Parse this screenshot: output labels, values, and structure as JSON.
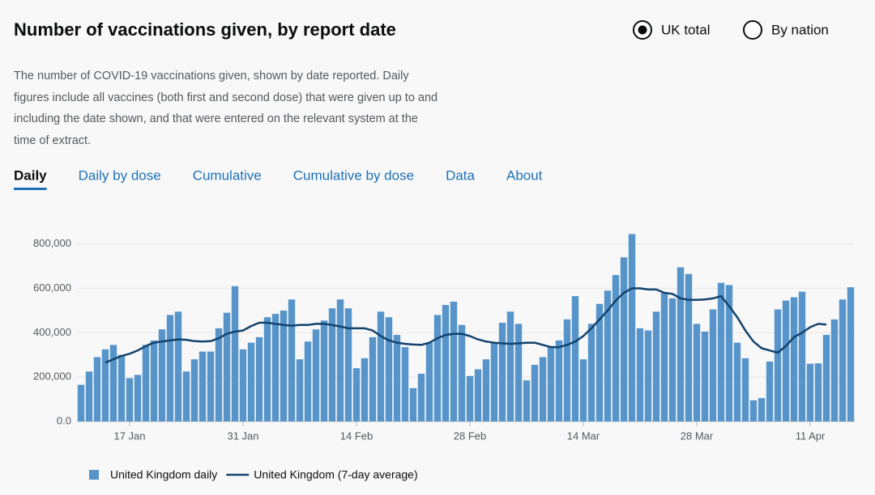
{
  "header": {
    "title": "Number of vaccinations given, by report date",
    "options": [
      {
        "label": "UK total",
        "selected": true
      },
      {
        "label": "By nation",
        "selected": false
      }
    ]
  },
  "description": "The number of COVID-19 vaccinations given, shown by date reported. Daily figures include all vaccines (both first and second dose) that were given up to and including the date shown, and that were entered on the relevant system at the time of extract.",
  "tabs": [
    {
      "label": "Daily",
      "active": true
    },
    {
      "label": "Daily by dose",
      "active": false
    },
    {
      "label": "Cumulative",
      "active": false
    },
    {
      "label": "Cumulative by dose",
      "active": false
    },
    {
      "label": "Data",
      "active": false
    },
    {
      "label": "About",
      "active": false
    }
  ],
  "chart_data": {
    "type": "bar",
    "categories": [
      null,
      null,
      null,
      null,
      null,
      null,
      "17 Jan",
      null,
      null,
      null,
      null,
      null,
      null,
      null,
      null,
      null,
      null,
      null,
      null,
      null,
      "31 Jan",
      null,
      null,
      null,
      null,
      null,
      null,
      null,
      null,
      null,
      null,
      null,
      null,
      null,
      "14 Feb",
      null,
      null,
      null,
      null,
      null,
      null,
      null,
      null,
      null,
      null,
      null,
      null,
      null,
      "28 Feb",
      null,
      null,
      null,
      null,
      null,
      null,
      null,
      null,
      null,
      null,
      null,
      null,
      null,
      "14 Mar",
      null,
      null,
      null,
      null,
      null,
      null,
      null,
      null,
      null,
      null,
      null,
      null,
      null,
      "28 Mar",
      null,
      null,
      null,
      null,
      null,
      null,
      null,
      null,
      null,
      null,
      null,
      null,
      null,
      "11 Apr",
      null,
      null,
      null,
      null,
      null
    ],
    "series": [
      {
        "name": "United Kingdom daily",
        "type": "bar",
        "color": "#5694ca",
        "values": [
          165000,
          225000,
          290000,
          325000,
          345000,
          300000,
          195000,
          210000,
          345000,
          365000,
          415000,
          480000,
          495000,
          225000,
          280000,
          315000,
          315000,
          420000,
          490000,
          610000,
          325000,
          355000,
          380000,
          470000,
          485000,
          500000,
          550000,
          280000,
          360000,
          415000,
          455000,
          510000,
          550000,
          510000,
          240000,
          285000,
          380000,
          495000,
          470000,
          390000,
          335000,
          150000,
          215000,
          355000,
          480000,
          525000,
          540000,
          435000,
          205000,
          235000,
          280000,
          355000,
          445000,
          495000,
          440000,
          185000,
          255000,
          290000,
          340000,
          365000,
          460000,
          565000,
          280000,
          440000,
          530000,
          590000,
          660000,
          740000,
          845000,
          420000,
          410000,
          495000,
          580000,
          555000,
          695000,
          665000,
          440000,
          405000,
          505000,
          625000,
          615000,
          355000,
          285000,
          95000,
          105000,
          270000,
          505000,
          545000,
          560000,
          585000,
          260000,
          262000,
          390000,
          460000,
          550000,
          605000
        ]
      },
      {
        "name": "United Kingdom (7-day average)",
        "type": "line",
        "color": "#12436d",
        "values": [
          null,
          null,
          null,
          265000,
          280000,
          295000,
          305000,
          320000,
          340000,
          355000,
          360000,
          365000,
          370000,
          368000,
          362000,
          360000,
          362000,
          375000,
          395000,
          405000,
          410000,
          430000,
          445000,
          445000,
          440000,
          435000,
          432000,
          435000,
          435000,
          440000,
          440000,
          435000,
          428000,
          420000,
          420000,
          420000,
          410000,
          385000,
          365000,
          355000,
          350000,
          347000,
          345000,
          355000,
          375000,
          390000,
          395000,
          395000,
          385000,
          370000,
          360000,
          355000,
          352000,
          350000,
          352000,
          355000,
          355000,
          345000,
          335000,
          335000,
          345000,
          360000,
          385000,
          420000,
          460000,
          500000,
          545000,
          580000,
          600000,
          600000,
          595000,
          595000,
          580000,
          575000,
          555000,
          548000,
          548000,
          550000,
          555000,
          565000,
          520000,
          470000,
          410000,
          360000,
          330000,
          320000,
          310000,
          340000,
          380000,
          400000,
          425000,
          440000,
          437000,
          null,
          null,
          null
        ]
      }
    ],
    "ylim": [
      0,
      850000
    ],
    "yticks": [
      {
        "value": 0,
        "label": "0.0"
      },
      {
        "value": 200000,
        "label": "200,000"
      },
      {
        "value": 400000,
        "label": "400,000"
      },
      {
        "value": 600000,
        "label": "600,000"
      },
      {
        "value": 800000,
        "label": "800,000"
      }
    ],
    "grid": true
  }
}
